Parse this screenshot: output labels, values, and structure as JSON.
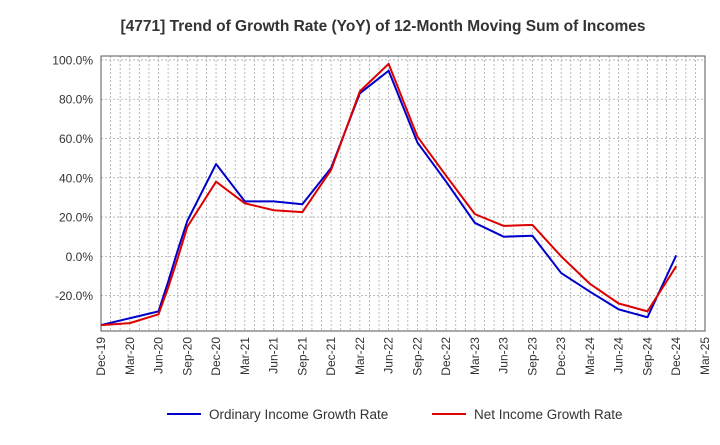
{
  "chart_data": {
    "type": "line",
    "title": "[4771]  Trend of Growth Rate (YoY) of 12-Month Moving Sum of Incomes",
    "xlabel": "",
    "ylabel": "",
    "x_ticks": [
      "Dec-19",
      "Mar-20",
      "Jun-20",
      "Sep-20",
      "Dec-20",
      "Mar-21",
      "Jun-21",
      "Sep-21",
      "Dec-21",
      "Mar-22",
      "Jun-22",
      "Sep-22",
      "Dec-22",
      "Mar-23",
      "Jun-23",
      "Sep-23",
      "Dec-23",
      "Mar-24",
      "Jun-24",
      "Sep-24",
      "Dec-24",
      "Mar-25"
    ],
    "y_ticks": [
      "100.0%",
      "80.0%",
      "60.0%",
      "40.0%",
      "20.0%",
      "0.0%",
      "-20.0%"
    ],
    "y_tick_values": [
      100,
      80,
      60,
      40,
      20,
      0,
      -20
    ],
    "ylim": [
      -38,
      102
    ],
    "x_months": [
      "Dec-19",
      "Jan-20",
      "Feb-20",
      "Mar-20",
      "Apr-20",
      "May-20",
      "Jun-20",
      "Jul-20",
      "Aug-20",
      "Sep-20",
      "Oct-20",
      "Nov-20",
      "Dec-20",
      "Jan-21",
      "Feb-21",
      "Mar-21",
      "Apr-21",
      "May-21",
      "Jun-21",
      "Jul-21",
      "Aug-21",
      "Sep-21",
      "Oct-21",
      "Nov-21",
      "Dec-21",
      "Jan-22",
      "Feb-22",
      "Mar-22",
      "Apr-22",
      "May-22",
      "Jun-22",
      "Jul-22",
      "Aug-22",
      "Sep-22",
      "Oct-22",
      "Nov-22",
      "Dec-22",
      "Jan-23",
      "Feb-23",
      "Mar-23",
      "Apr-23",
      "May-23",
      "Jun-23",
      "Jul-23",
      "Aug-23",
      "Sep-23",
      "Oct-23",
      "Nov-23",
      "Dec-23",
      "Jan-24",
      "Feb-24",
      "Mar-24",
      "Apr-24",
      "May-24",
      "Jun-24",
      "Jul-24",
      "Aug-24",
      "Sep-24",
      "Oct-24",
      "Nov-24",
      "Dec-24",
      "Jan-25",
      "Feb-25",
      "Mar-25"
    ],
    "grid": true,
    "legend_position": "bottom",
    "series": [
      {
        "name": "Ordinary Income Growth Rate",
        "color": "#0000cc",
        "x": [
          "Dec-19",
          "Mar-20",
          "Jun-20",
          "Jul-20",
          "Aug-20",
          "Sep-20",
          "Dec-20",
          "Mar-21",
          "Jun-21",
          "Sep-21",
          "Dec-21",
          "Mar-22",
          "Jun-22",
          "Sep-22",
          "Dec-22",
          "Mar-23",
          "Jun-23",
          "Sep-23",
          "Dec-23",
          "Mar-24",
          "Jun-24",
          "Sep-24",
          "Dec-24"
        ],
        "values": [
          -35,
          -31.5,
          -28,
          -13,
          3,
          18,
          47,
          28,
          28,
          26.5,
          45,
          83,
          94.5,
          58,
          38,
          17,
          10,
          10.5,
          -8.5,
          -18,
          -27,
          -31,
          0.5
        ]
      },
      {
        "name": "Net Income Growth Rate",
        "color": "#dd0000",
        "x": [
          "Dec-19",
          "Mar-20",
          "Jun-20",
          "Jul-20",
          "Aug-20",
          "Sep-20",
          "Dec-20",
          "Mar-21",
          "Jun-21",
          "Sep-21",
          "Dec-21",
          "Mar-22",
          "Jun-22",
          "Sep-22",
          "Dec-22",
          "Mar-23",
          "Jun-23",
          "Sep-23",
          "Dec-23",
          "Mar-24",
          "Jun-24",
          "Sep-24",
          "Dec-24"
        ],
        "values": [
          -35,
          -34,
          -29.5,
          -16,
          -1,
          15,
          38,
          27,
          23.5,
          22.5,
          44,
          84,
          98,
          61,
          41,
          21.5,
          15.5,
          16,
          0,
          -14,
          -24,
          -28,
          -5
        ]
      }
    ]
  }
}
